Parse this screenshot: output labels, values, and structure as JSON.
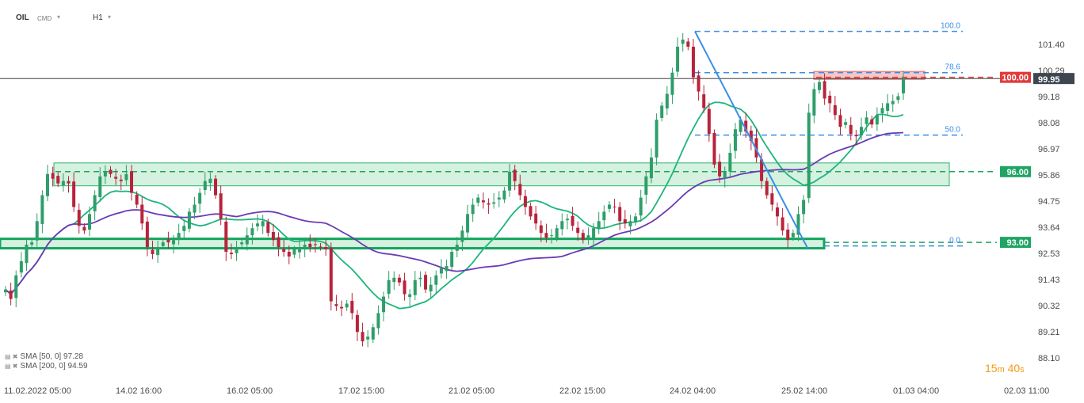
{
  "toolbar": {
    "symbol": "OIL",
    "market": "CMD",
    "timeframe": "H1",
    "caret": "▾"
  },
  "timer": {
    "minutes": "15",
    "m_unit": "m",
    "seconds": "40",
    "s_unit": "s"
  },
  "legend": {
    "sma50": "SMA [50, 0] 97.28",
    "sma200": "SMA [200, 0] 94.59"
  },
  "colors": {
    "up": "#2e9e6a",
    "down": "#b8233b",
    "sma50": "#1db57a",
    "sma200": "#6a3bb3",
    "fib": "#3a8ee6",
    "zone_fill": "#c7ecd4",
    "zone_border": "#2bb36e",
    "resistance": "#e03c3c",
    "price_tag": "#3d4650"
  },
  "chart_data": {
    "type": "candlestick",
    "y_axis": {
      "min": 88.1,
      "max": 102.0,
      "ticks": [
        "101.40",
        "100.29",
        "99.18",
        "98.08",
        "96.97",
        "95.86",
        "94.75",
        "93.64",
        "92.53",
        "91.43",
        "90.32",
        "89.21",
        "88.10"
      ]
    },
    "x_axis": {
      "labels": [
        "11.02.2022  05:00",
        "14.02  16:00",
        "16.02  05:00",
        "17.02  15:00",
        "21.02  05:00",
        "22.02  15:00",
        "24.02  04:00",
        "25.02  14:00",
        "01.03  04:00",
        "02.03  11:00"
      ]
    },
    "current_price": "99.95",
    "price_tags": [
      {
        "label": "100.00",
        "value": 100.0,
        "color": "#e03c3c"
      },
      {
        "label": "96.00",
        "value": 96.0,
        "color": "#1fa463"
      },
      {
        "label": "93.00",
        "value": 93.0,
        "color": "#1fa463"
      }
    ],
    "fibonacci": [
      {
        "label": "100.0",
        "value": 101.95
      },
      {
        "label": "78.6",
        "value": 100.2
      },
      {
        "label": "50.0",
        "value": 97.55
      },
      {
        "label": "0.0",
        "value": 92.85
      }
    ],
    "zones": [
      {
        "from": 95.6,
        "to": 96.1
      },
      {
        "from": 92.75,
        "to": 93.15
      }
    ],
    "sma_legend": [
      "SMA [50, 0] 97.28",
      "SMA [200, 0] 94.59"
    ],
    "candle_anchors": [
      [
        91.0,
        4
      ],
      [
        90.6,
        1
      ],
      [
        91.6,
        2
      ],
      [
        92.2,
        2
      ],
      [
        92.9,
        2
      ],
      [
        93.0,
        1
      ],
      [
        93.9,
        2
      ],
      [
        95.0,
        2
      ],
      [
        95.9,
        3
      ],
      [
        95.7,
        2
      ],
      [
        95.5,
        2
      ],
      [
        95.6,
        2
      ],
      [
        95.5,
        1
      ],
      [
        94.5,
        2
      ],
      [
        93.7,
        2
      ],
      [
        93.5,
        2
      ],
      [
        94.2,
        1
      ],
      [
        95.0,
        2
      ],
      [
        95.8,
        2
      ],
      [
        96.0,
        2
      ],
      [
        95.9,
        3
      ],
      [
        95.7,
        2
      ],
      [
        95.6,
        2
      ],
      [
        95.9,
        2
      ],
      [
        95.1,
        2
      ],
      [
        94.6,
        2
      ],
      [
        93.8,
        2
      ],
      [
        92.8,
        2
      ],
      [
        92.5,
        2
      ],
      [
        92.8,
        2
      ],
      [
        93.0,
        2
      ],
      [
        93.0,
        3
      ],
      [
        93.1,
        2
      ],
      [
        93.4,
        2
      ],
      [
        93.7,
        2
      ],
      [
        94.3,
        2
      ],
      [
        94.6,
        2
      ],
      [
        95.1,
        2
      ],
      [
        95.6,
        2
      ],
      [
        95.7,
        2
      ],
      [
        95.0,
        2
      ],
      [
        94.0,
        2
      ],
      [
        92.6,
        2
      ],
      [
        92.5,
        2
      ],
      [
        92.8,
        2
      ],
      [
        93.0,
        2
      ],
      [
        93.3,
        2
      ],
      [
        93.6,
        2
      ],
      [
        93.8,
        2
      ],
      [
        93.9,
        3
      ],
      [
        93.4,
        2
      ],
      [
        93.1,
        2
      ],
      [
        92.8,
        2
      ],
      [
        92.6,
        2
      ],
      [
        92.4,
        2
      ],
      [
        92.7,
        2
      ],
      [
        92.8,
        2
      ],
      [
        92.9,
        2
      ],
      [
        92.8,
        2
      ],
      [
        92.9,
        2
      ],
      [
        92.8,
        1
      ],
      [
        92.7,
        1
      ],
      [
        90.5,
        2
      ],
      [
        90.3,
        2
      ],
      [
        90.2,
        2
      ],
      [
        90.4,
        2
      ],
      [
        90.0,
        2
      ],
      [
        89.2,
        2
      ],
      [
        88.8,
        2
      ],
      [
        89.0,
        2
      ],
      [
        89.4,
        2
      ],
      [
        90.0,
        2
      ],
      [
        90.7,
        2
      ],
      [
        91.4,
        2
      ],
      [
        91.5,
        2
      ],
      [
        91.3,
        2
      ],
      [
        90.8,
        2
      ],
      [
        90.8,
        2
      ],
      [
        91.4,
        2
      ],
      [
        91.5,
        2
      ],
      [
        91.0,
        2
      ],
      [
        91.2,
        2
      ],
      [
        91.6,
        2
      ],
      [
        91.9,
        2
      ],
      [
        92.0,
        2
      ],
      [
        92.6,
        2
      ],
      [
        92.9,
        3
      ],
      [
        93.5,
        2
      ],
      [
        94.2,
        2
      ],
      [
        94.6,
        2
      ],
      [
        94.9,
        2
      ],
      [
        94.7,
        2
      ],
      [
        94.6,
        2
      ],
      [
        94.7,
        2
      ],
      [
        94.9,
        2
      ],
      [
        95.2,
        2
      ],
      [
        96.0,
        3
      ],
      [
        95.6,
        2
      ],
      [
        95.0,
        2
      ],
      [
        94.5,
        2
      ],
      [
        94.1,
        2
      ],
      [
        93.8,
        2
      ],
      [
        93.4,
        2
      ],
      [
        93.2,
        2
      ],
      [
        93.3,
        2
      ],
      [
        93.6,
        2
      ],
      [
        93.9,
        2
      ],
      [
        94.0,
        2
      ],
      [
        93.7,
        2
      ],
      [
        93.4,
        2
      ],
      [
        93.1,
        2
      ],
      [
        93.3,
        2
      ],
      [
        93.6,
        2
      ],
      [
        93.9,
        2
      ],
      [
        94.3,
        2
      ],
      [
        94.6,
        3
      ],
      [
        94.5,
        2
      ],
      [
        93.9,
        2
      ],
      [
        93.8,
        2
      ],
      [
        93.9,
        2
      ],
      [
        94.1,
        2
      ],
      [
        94.9,
        2
      ],
      [
        95.8,
        2
      ],
      [
        96.6,
        2
      ],
      [
        98.2,
        2
      ],
      [
        98.8,
        2
      ],
      [
        99.3,
        2
      ],
      [
        100.2,
        2
      ],
      [
        101.3,
        3
      ],
      [
        101.6,
        2
      ],
      [
        101.3,
        2
      ],
      [
        100.0,
        2
      ],
      [
        99.4,
        2
      ],
      [
        98.7,
        2
      ],
      [
        97.6,
        2
      ],
      [
        96.3,
        2
      ],
      [
        95.8,
        2
      ],
      [
        96.0,
        2
      ],
      [
        96.8,
        2
      ],
      [
        97.8,
        2
      ],
      [
        98.2,
        2
      ],
      [
        97.7,
        2
      ],
      [
        97.3,
        2
      ],
      [
        96.6,
        2
      ],
      [
        95.6,
        2
      ],
      [
        95.0,
        2
      ],
      [
        94.6,
        2
      ],
      [
        94.1,
        2
      ],
      [
        93.5,
        2
      ],
      [
        93.1,
        2
      ],
      [
        93.4,
        2
      ],
      [
        94.2,
        2
      ],
      [
        94.8,
        2
      ],
      [
        98.5,
        1
      ],
      [
        99.5,
        2
      ],
      [
        99.8,
        2
      ],
      [
        99.1,
        2
      ],
      [
        98.9,
        2
      ],
      [
        98.4,
        2
      ],
      [
        97.9,
        2
      ],
      [
        98.1,
        2
      ],
      [
        97.6,
        2
      ],
      [
        97.5,
        2
      ],
      [
        97.9,
        2
      ],
      [
        98.3,
        2
      ],
      [
        98.0,
        2
      ],
      [
        98.4,
        2
      ],
      [
        98.7,
        2
      ],
      [
        98.9,
        2
      ],
      [
        99.0,
        2
      ],
      [
        99.2,
        2
      ],
      [
        99.95,
        2
      ]
    ]
  }
}
